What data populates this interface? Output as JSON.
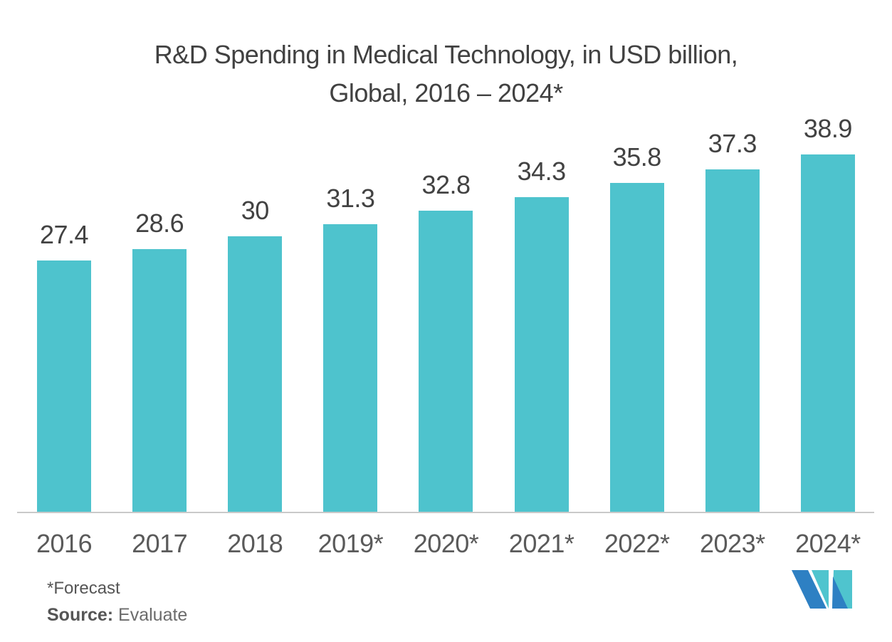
{
  "title": {
    "line1": "R&D Spending in Medical Technology, in USD billion,",
    "line2": "Global, 2016 – 2024*"
  },
  "footnote": {
    "forecast": "*Forecast",
    "source_label": "Source:",
    "source_value": "Evaluate"
  },
  "logo": {
    "name": "mordor-intelligence-logo-mark",
    "teal": "#4FC4CE",
    "blue": "#2E80C3"
  },
  "colors": {
    "background": "#FFFFFF",
    "bar": "#4EC3CD",
    "title_text": "#414141",
    "value_label_text": "#424242",
    "axis_label_text": "#5A5A5A",
    "axis_line": "#C9C9C9",
    "footnote_text": "#555555"
  },
  "chart_data": {
    "type": "bar",
    "title": "R&D Spending in Medical Technology, in USD billion, Global, 2016 – 2024*",
    "categories": [
      "2016",
      "2017",
      "2018",
      "2019*",
      "2020*",
      "2021*",
      "2022*",
      "2023*",
      "2024*"
    ],
    "values": [
      27.4,
      28.6,
      30,
      31.3,
      32.8,
      34.3,
      35.8,
      37.3,
      38.9
    ],
    "xlabel": "",
    "ylabel": "",
    "ylim": [
      0,
      40
    ],
    "grid": false,
    "legend": false,
    "data_labels": true,
    "bar_color": "#4EC3CD",
    "baseline_at_zero": true,
    "annotations": [
      "*Forecast",
      "Source: Evaluate"
    ]
  }
}
